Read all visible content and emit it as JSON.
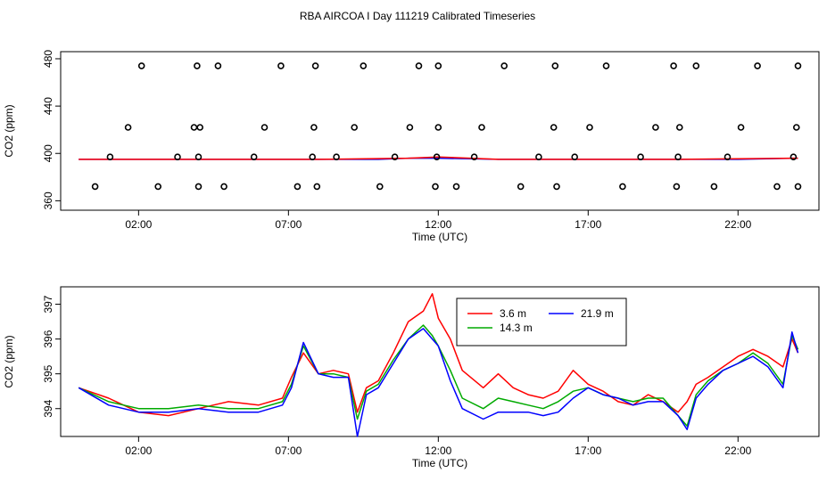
{
  "title": "RBA AIRCOA I  Day 111219  Calibrated Timeseries",
  "chart_data": [
    {
      "type": "scatter",
      "xlabel": "Time (UTC)",
      "ylabel": "CO2 (ppm)",
      "x_ticks": [
        "02:00",
        "07:00",
        "12:00",
        "17:00",
        "22:00"
      ],
      "y_ticks": [
        "360",
        "400",
        "440",
        "480"
      ],
      "xlim_hours": [
        -0.6,
        24.7
      ],
      "ylim": [
        352,
        486
      ],
      "grid": false,
      "line_series": [
        {
          "color": "#0000ff",
          "x": [
            0,
            2,
            4,
            6,
            8,
            10,
            11,
            12,
            14,
            16,
            18,
            20,
            22,
            24
          ],
          "y": [
            395,
            395,
            395,
            395,
            395,
            395,
            396,
            396,
            395,
            395,
            395,
            395,
            395,
            396
          ]
        },
        {
          "color": "#ff0000",
          "x": [
            0,
            4,
            8,
            11,
            12,
            14,
            16,
            20,
            24
          ],
          "y": [
            395,
            395,
            395,
            396,
            397,
            395,
            395,
            395,
            396
          ]
        }
      ],
      "points": {
        "x": [
          0.55,
          1.05,
          1.65,
          2.1,
          2.65,
          3.3,
          3.85,
          3.95,
          4.0,
          4.0,
          4.05,
          4.65,
          4.85,
          5.85,
          6.2,
          6.75,
          7.3,
          7.8,
          7.85,
          7.9,
          7.95,
          8.6,
          9.2,
          9.5,
          10.05,
          10.55,
          11.05,
          11.35,
          11.9,
          11.95,
          12.0,
          12.0,
          12.6,
          13.2,
          13.45,
          14.2,
          14.75,
          15.35,
          15.85,
          15.9,
          15.95,
          16.55,
          17.05,
          17.6,
          18.15,
          18.75,
          19.25,
          19.85,
          19.95,
          20.0,
          20.05,
          20.6,
          21.2,
          21.65,
          22.1,
          22.65,
          23.3,
          23.85,
          23.95,
          24.0,
          24.0
        ]
      }
    },
    {
      "type": "line",
      "xlabel": "Time (UTC)",
      "ylabel": "CO2 (ppm)",
      "x_ticks": [
        "02:00",
        "07:00",
        "12:00",
        "17:00",
        "22:00"
      ],
      "y_ticks": [
        "394",
        "395",
        "396",
        "397"
      ],
      "xlim_hours": [
        -0.6,
        24.7
      ],
      "ylim": [
        393.2,
        397.5
      ],
      "grid": false,
      "legend": "top-center",
      "series": [
        {
          "name": "3.6 m",
          "color": "#ff0000",
          "x": [
            0,
            1,
            2,
            3,
            4,
            5,
            6,
            6.8,
            7.1,
            7.5,
            8,
            8.5,
            9,
            9.3,
            9.6,
            10,
            10.5,
            11,
            11.5,
            11.8,
            12,
            12.4,
            12.8,
            13.5,
            14,
            14.5,
            15,
            15.5,
            16,
            16.5,
            17,
            17.5,
            18,
            18.5,
            19,
            19.5,
            20,
            20.3,
            20.6,
            21,
            21.5,
            22,
            22.5,
            23,
            23.5,
            23.8,
            24
          ],
          "y": [
            394.6,
            394.3,
            393.9,
            393.8,
            394.0,
            394.2,
            394.1,
            394.3,
            394.9,
            395.6,
            395.0,
            395.1,
            395.0,
            393.9,
            394.6,
            394.8,
            395.6,
            396.5,
            396.8,
            397.3,
            396.6,
            396.0,
            395.1,
            394.6,
            395.0,
            394.6,
            394.4,
            394.3,
            394.5,
            395.1,
            394.7,
            394.5,
            394.2,
            394.1,
            394.4,
            394.2,
            393.9,
            394.2,
            394.7,
            394.9,
            395.2,
            395.5,
            395.7,
            395.5,
            395.2,
            396.0,
            395.6
          ]
        },
        {
          "name": "14.3 m",
          "color": "#00aa00",
          "x": [
            0,
            1,
            2,
            3,
            4,
            5,
            6,
            6.8,
            7.1,
            7.5,
            8,
            8.5,
            9,
            9.3,
            9.6,
            10,
            10.5,
            11,
            11.5,
            11.8,
            12,
            12.4,
            12.8,
            13.5,
            14,
            14.5,
            15,
            15.5,
            16,
            16.5,
            17,
            17.5,
            18,
            18.5,
            19,
            19.5,
            20,
            20.3,
            20.6,
            21,
            21.5,
            22,
            22.5,
            23,
            23.5,
            23.8,
            24
          ],
          "y": [
            394.6,
            394.2,
            394.0,
            394.0,
            394.1,
            394.0,
            394.0,
            394.2,
            394.7,
            395.8,
            395.0,
            395.0,
            394.9,
            393.7,
            394.5,
            394.7,
            395.4,
            396.0,
            396.4,
            396.1,
            395.8,
            395.1,
            394.3,
            394.0,
            394.3,
            394.2,
            394.1,
            394.0,
            394.2,
            394.5,
            394.6,
            394.4,
            394.3,
            394.2,
            394.3,
            394.3,
            393.8,
            393.5,
            394.4,
            394.8,
            395.1,
            395.3,
            395.6,
            395.3,
            394.7,
            396.1,
            395.7
          ]
        },
        {
          "name": "21.9 m",
          "color": "#0000ff",
          "x": [
            0,
            1,
            2,
            3,
            4,
            5,
            6,
            6.8,
            7.1,
            7.5,
            8,
            8.5,
            9,
            9.3,
            9.6,
            10,
            10.5,
            11,
            11.5,
            11.8,
            12,
            12.4,
            12.8,
            13.5,
            14,
            14.5,
            15,
            15.5,
            16,
            16.5,
            17,
            17.5,
            18,
            18.5,
            19,
            19.5,
            20,
            20.3,
            20.6,
            21,
            21.5,
            22,
            22.5,
            23,
            23.5,
            23.8,
            24
          ],
          "y": [
            394.6,
            394.1,
            393.9,
            393.9,
            394.0,
            393.9,
            393.9,
            394.1,
            394.6,
            395.9,
            395.0,
            394.9,
            394.9,
            393.2,
            394.4,
            394.6,
            395.3,
            396.0,
            396.3,
            396.0,
            395.8,
            394.8,
            394.0,
            393.7,
            393.9,
            393.9,
            393.9,
            393.8,
            393.9,
            394.3,
            394.6,
            394.4,
            394.3,
            394.1,
            394.2,
            394.2,
            393.8,
            393.4,
            394.3,
            394.7,
            395.1,
            395.3,
            395.5,
            395.2,
            394.6,
            396.2,
            395.6
          ]
        }
      ]
    }
  ]
}
